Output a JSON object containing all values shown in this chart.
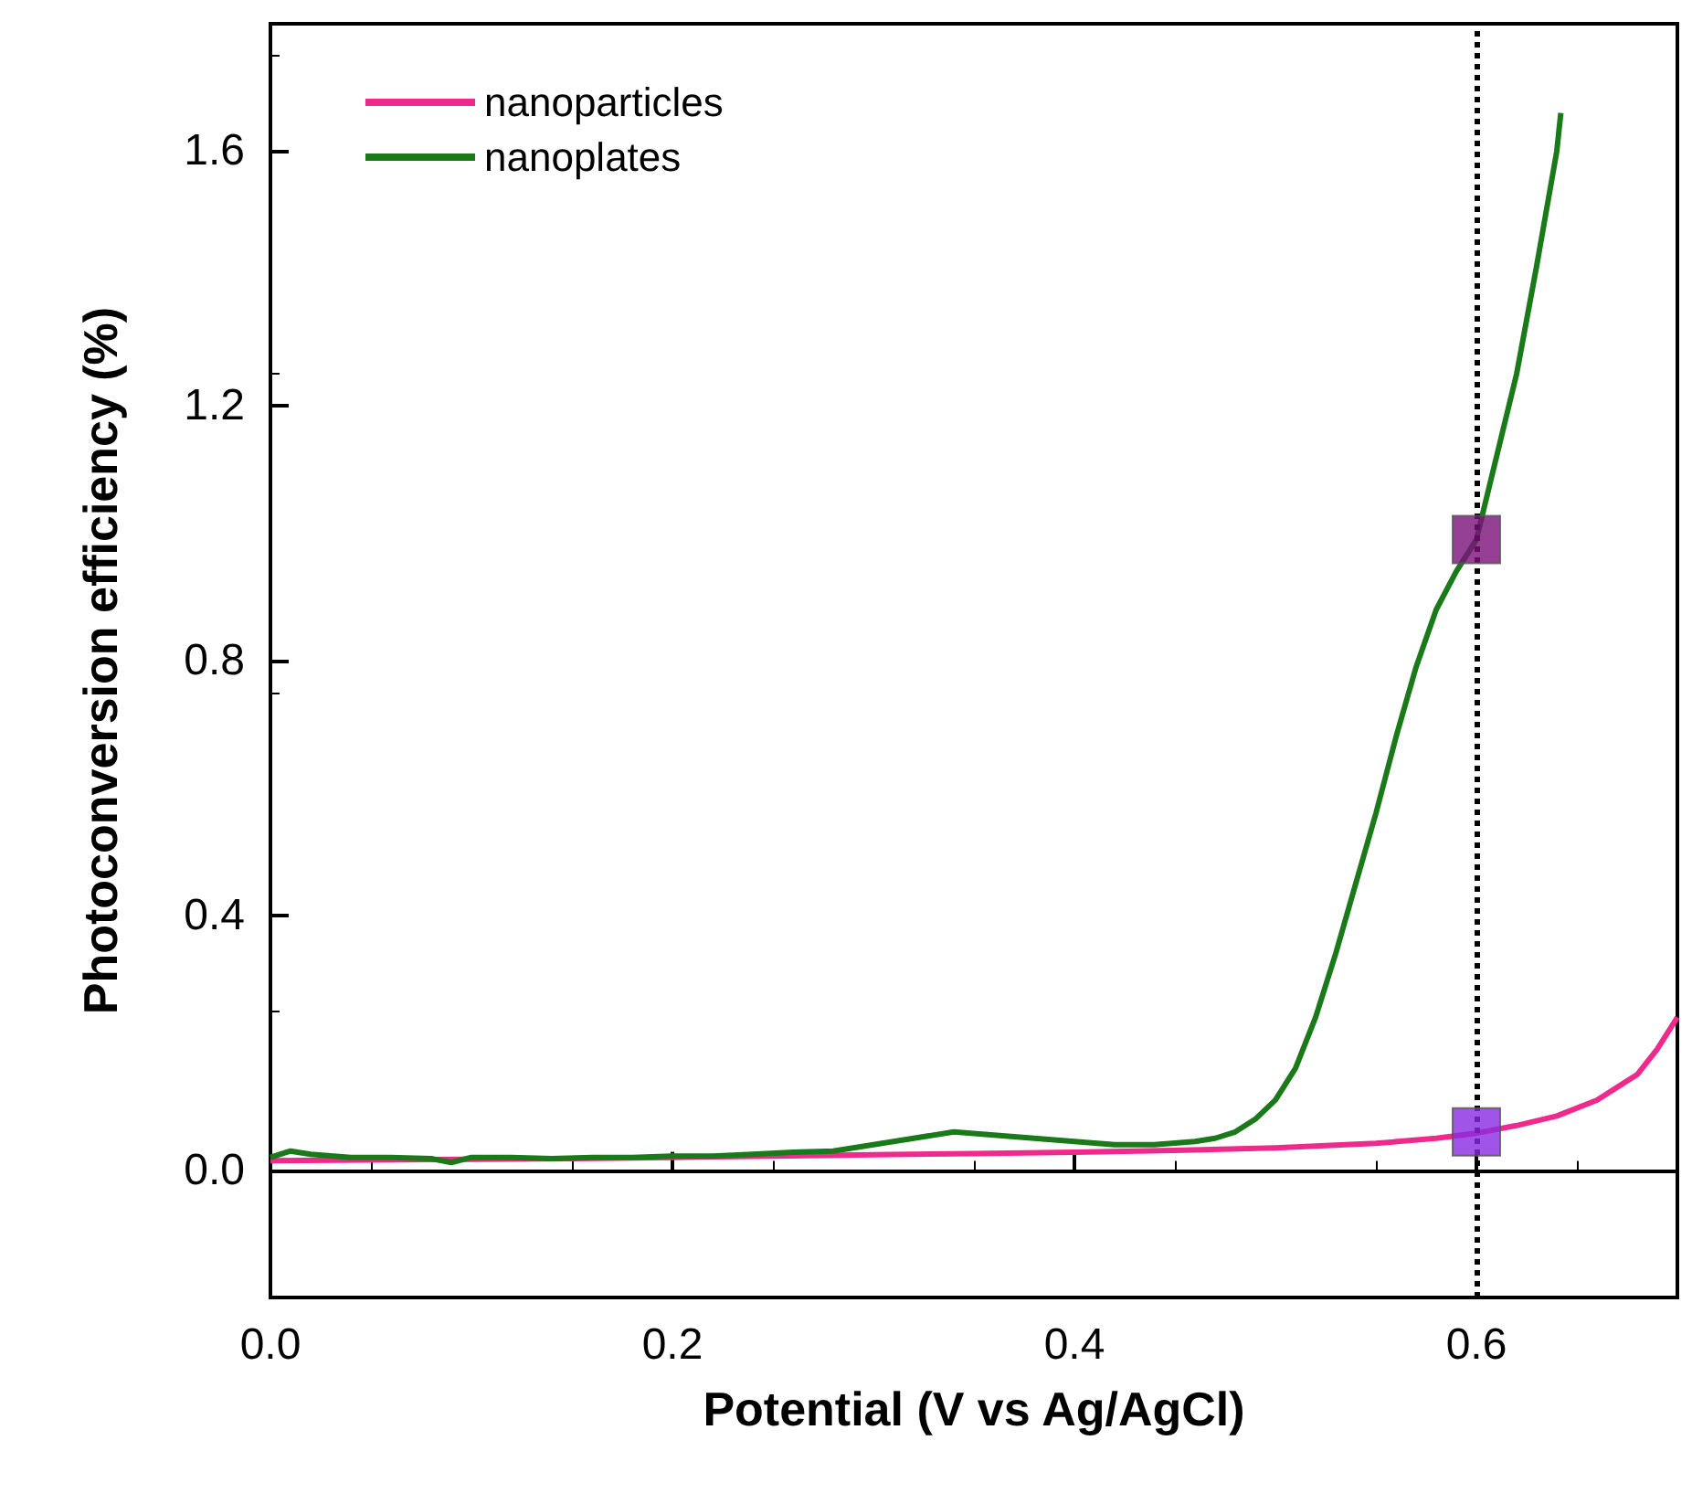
{
  "chart_data": {
    "type": "line",
    "xlabel": "Potential (V vs Ag/AgCl)",
    "ylabel": "Photoconversion efficiency (%)",
    "xlim": [
      0,
      0.7
    ],
    "ylim": [
      -0.2,
      1.8
    ],
    "xticks": [
      {
        "value": 0,
        "label": "0.0"
      },
      {
        "value": 0.2,
        "label": "0.2"
      },
      {
        "value": 0.4,
        "label": "0.4"
      },
      {
        "value": 0.6,
        "label": "0.6"
      }
    ],
    "yticks": [
      {
        "value": 0,
        "label": "0.0"
      },
      {
        "value": 0.4,
        "label": "0.4"
      },
      {
        "value": 0.8,
        "label": "0.8"
      },
      {
        "value": 1.2,
        "label": "1.2"
      },
      {
        "value": 1.6,
        "label": "1.6"
      }
    ],
    "grid": false,
    "legend": "top left",
    "marker": "none",
    "line_style": "solid",
    "series": [
      {
        "name": "nanoparticles",
        "color": "#ee2a8c",
        "x": [
          0,
          0.05,
          0.1,
          0.15,
          0.2,
          0.25,
          0.3,
          0.35,
          0.4,
          0.45,
          0.5,
          0.55,
          0.58,
          0.6,
          0.62,
          0.64,
          0.66,
          0.68,
          0.69,
          0.7
        ],
        "values": [
          0.015,
          0.016,
          0.017,
          0.018,
          0.02,
          0.022,
          0.024,
          0.026,
          0.028,
          0.031,
          0.035,
          0.042,
          0.05,
          0.058,
          0.07,
          0.085,
          0.11,
          0.15,
          0.19,
          0.24
        ]
      },
      {
        "name": "nanoplates",
        "color": "#1a7a1a",
        "x": [
          0,
          0.01,
          0.02,
          0.04,
          0.06,
          0.08,
          0.09,
          0.1,
          0.12,
          0.14,
          0.16,
          0.18,
          0.2,
          0.22,
          0.24,
          0.26,
          0.28,
          0.3,
          0.32,
          0.34,
          0.36,
          0.38,
          0.4,
          0.42,
          0.44,
          0.46,
          0.47,
          0.48,
          0.49,
          0.5,
          0.51,
          0.52,
          0.53,
          0.54,
          0.55,
          0.56,
          0.57,
          0.58,
          0.59,
          0.6,
          0.61,
          0.62,
          0.63,
          0.64,
          0.642
        ],
        "values": [
          0.02,
          0.03,
          0.025,
          0.02,
          0.02,
          0.018,
          0.012,
          0.02,
          0.02,
          0.018,
          0.02,
          0.02,
          0.022,
          0.022,
          0.025,
          0.028,
          0.03,
          0.04,
          0.05,
          0.06,
          0.055,
          0.05,
          0.045,
          0.04,
          0.04,
          0.045,
          0.05,
          0.06,
          0.08,
          0.11,
          0.16,
          0.24,
          0.34,
          0.45,
          0.56,
          0.68,
          0.79,
          0.88,
          0.94,
          0.99,
          1.12,
          1.25,
          1.42,
          1.6,
          1.66
        ]
      },
      {
        "type": "scatter",
        "marker": "square",
        "x": [
          0.6,
          0.6
        ],
        "values": [
          0.99,
          0.06
        ],
        "colors": [
          "#7a0f7a",
          "#8a2be2"
        ]
      }
    ],
    "ref_lines": [
      {
        "axis": "x",
        "value": 0.6,
        "label": null,
        "color": "#000000",
        "line_style": "dotted"
      }
    ]
  }
}
